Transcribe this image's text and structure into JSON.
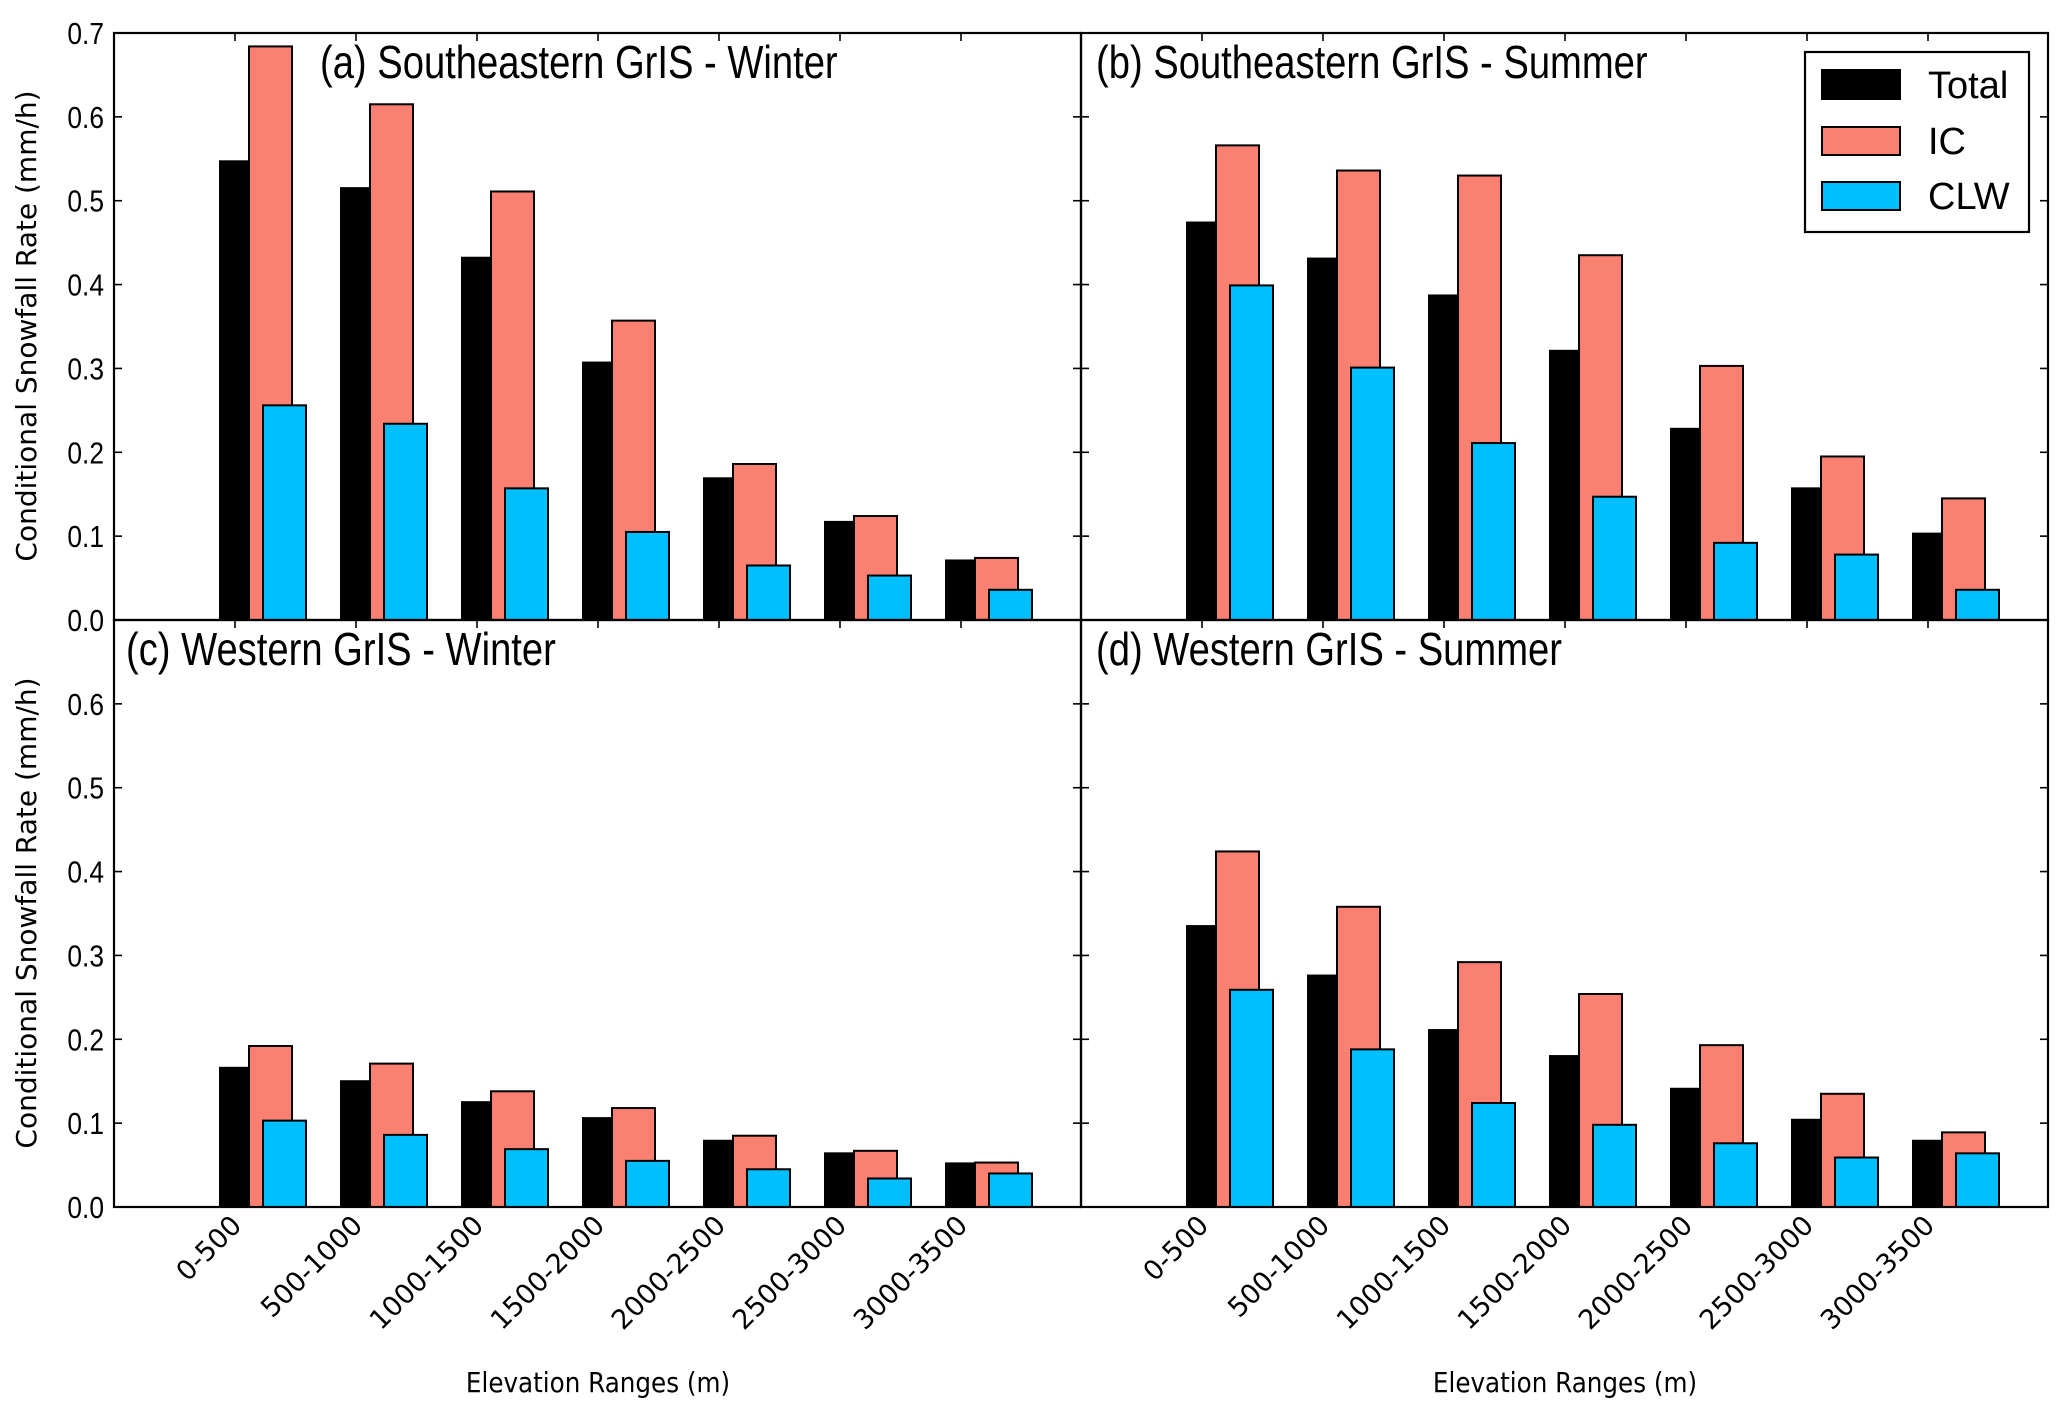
{
  "chart_data": {
    "type": "bar",
    "ylabel": "Conditional Snowfall Rate (mm/h)",
    "xlabel": "Elevation Ranges (m)",
    "ylim": [
      0.0,
      0.7
    ],
    "yticks": [
      "0.0",
      "0.1",
      "0.2",
      "0.3",
      "0.4",
      "0.5",
      "0.6",
      "0.7"
    ],
    "categories": [
      "0-500",
      "500-1000",
      "1000-1500",
      "1500-2000",
      "2000-2500",
      "2500-3000",
      "3000-3500"
    ],
    "legend": {
      "placement": "top-right",
      "entries": [
        {
          "name": "Total",
          "color": "#000000"
        },
        {
          "name": "IC",
          "color": "#fa8072"
        },
        {
          "name": "CLW",
          "color": "#00bfff"
        }
      ]
    },
    "grid": false,
    "panels": [
      {
        "id": "a",
        "title": "(a) Southeastern GrIS - Winter",
        "series": [
          {
            "name": "Total",
            "values": [
              0.547,
              0.515,
              0.432,
              0.307,
              0.169,
              0.117,
              0.071
            ]
          },
          {
            "name": "IC",
            "values": [
              0.684,
              0.615,
              0.511,
              0.357,
              0.186,
              0.124,
              0.074
            ]
          },
          {
            "name": "CLW",
            "values": [
              0.256,
              0.234,
              0.157,
              0.105,
              0.065,
              0.053,
              0.036
            ]
          }
        ]
      },
      {
        "id": "b",
        "title": "(b) Southeastern GrIS - Summer",
        "series": [
          {
            "name": "Total",
            "values": [
              0.474,
              0.431,
              0.387,
              0.321,
              0.228,
              0.157,
              0.103
            ]
          },
          {
            "name": "IC",
            "values": [
              0.566,
              0.536,
              0.53,
              0.435,
              0.303,
              0.195,
              0.145
            ]
          },
          {
            "name": "CLW",
            "values": [
              0.399,
              0.301,
              0.211,
              0.147,
              0.092,
              0.078,
              0.036
            ]
          }
        ]
      },
      {
        "id": "c",
        "title": "(c) Western GrIS - Winter",
        "series": [
          {
            "name": "Total",
            "values": [
              0.166,
              0.15,
              0.125,
              0.106,
              0.079,
              0.064,
              0.052
            ]
          },
          {
            "name": "IC",
            "values": [
              0.192,
              0.171,
              0.138,
              0.118,
              0.085,
              0.067,
              0.053
            ]
          },
          {
            "name": "CLW",
            "values": [
              0.103,
              0.086,
              0.069,
              0.055,
              0.045,
              0.034,
              0.04
            ]
          }
        ]
      },
      {
        "id": "d",
        "title": "(d) Western GrIS - Summer",
        "series": [
          {
            "name": "Total",
            "values": [
              0.335,
              0.276,
              0.211,
              0.18,
              0.141,
              0.104,
              0.079
            ]
          },
          {
            "name": "IC",
            "values": [
              0.424,
              0.358,
              0.292,
              0.254,
              0.193,
              0.135,
              0.089
            ]
          },
          {
            "name": "CLW",
            "values": [
              0.259,
              0.188,
              0.124,
              0.098,
              0.076,
              0.059,
              0.064
            ]
          }
        ]
      }
    ]
  }
}
